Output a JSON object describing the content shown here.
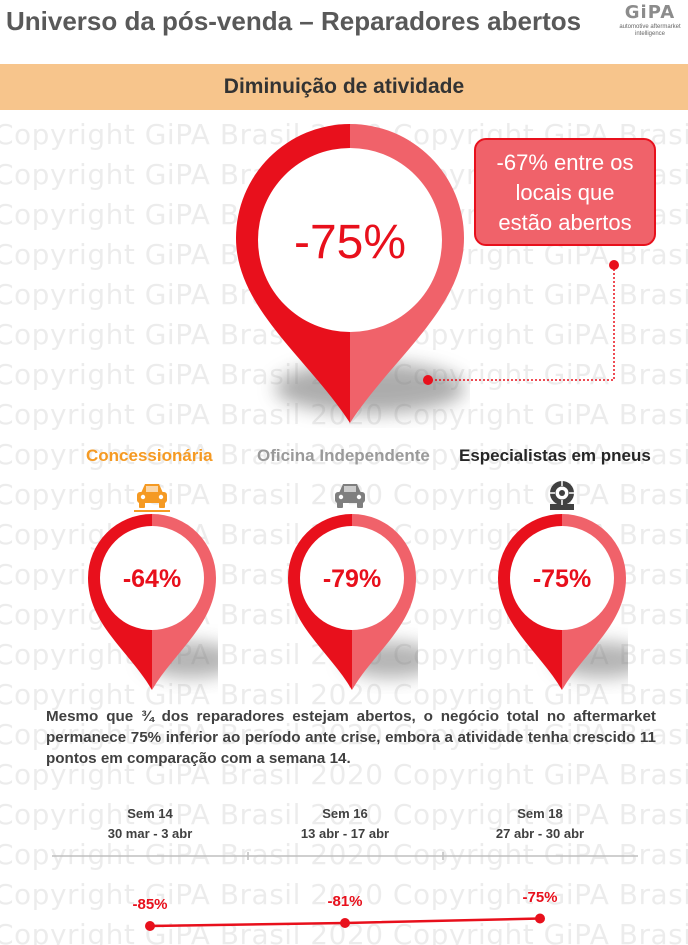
{
  "header": {
    "title": "Universo da pós-venda – Reparadores abertos",
    "logo_text": "GiPA",
    "logo_tagline": "automotive aftermarket intelligence"
  },
  "watermark": "Copyright GiPA Brasil 2020 Copyright GiPA Brasil 2020",
  "banner": {
    "text": "Diminuição de atividade"
  },
  "main_pin": {
    "value": "-75%"
  },
  "callout": {
    "lines": [
      "-67% entre os",
      "locais que",
      "estão abertos"
    ]
  },
  "categories": [
    {
      "label": "Concessionária",
      "value": "-64%",
      "icon": "car-icon",
      "icon_color": "#f59a23"
    },
    {
      "label": "Oficina Independente",
      "value": "-79%",
      "icon": "car-icon",
      "icon_color": "#7f7f7f"
    },
    {
      "label": "Especialistas em pneus",
      "value": "-75%",
      "icon": "tire-icon",
      "icon_color": "#404040"
    }
  ],
  "paragraph": "Mesmo que ¾ dos reparadores estejam abertos, o negócio total no aftermarket permanece 75% inferior ao período ante crise, embora a atividade tenha crescido 11 pontos em comparação com a semana 14.",
  "timeline": [
    {
      "week": "Sem 14",
      "dates": "30 mar - 3 abr",
      "value": "-85%",
      "pct": -85
    },
    {
      "week": "Sem 16",
      "dates": "13 abr - 17 abr",
      "value": "-81%",
      "pct": -81
    },
    {
      "week": "Sem 18",
      "dates": "27 abr - 30 abr",
      "value": "-75%",
      "pct": -75
    }
  ],
  "colors": {
    "accent_red": "#e8101c",
    "light_red": "#f0626a",
    "banner": "#f7c58c",
    "concessionaria": "#f59a23",
    "independente": "#9a9a9a"
  }
}
